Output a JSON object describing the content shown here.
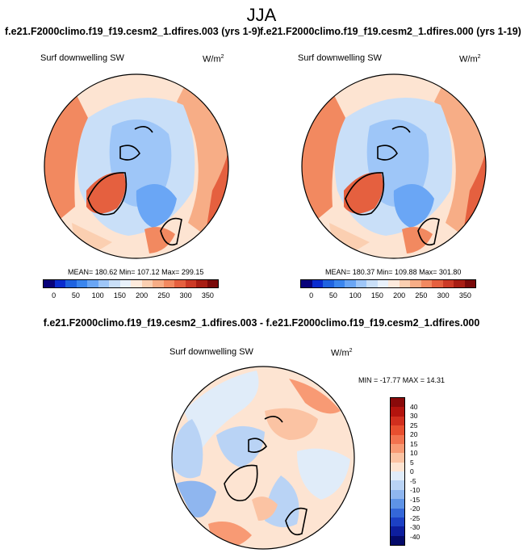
{
  "title": "JJA",
  "subtitles": {
    "left": "f.e21.F2000climo.f19_f19.cesm2_1.dfires.003 (yrs 1-9)",
    "right": "f.e21.F2000climo.f19_f19.cesm2_1.dfires.000 (yrs 1-19)"
  },
  "panels": {
    "left": {
      "label": "Surf downwelling SW",
      "units": "W/m",
      "units_sup": "2",
      "stats": "MEAN= 180.62  Min= 107.12  Max= 299.15"
    },
    "right": {
      "label": "Surf downwelling SW",
      "units": "W/m",
      "units_sup": "2",
      "stats": "MEAN= 180.37  Min= 109.88  Max= 301.80"
    },
    "diff": {
      "title": "f.e21.F2000climo.f19_f19.cesm2_1.dfires.003 - f.e21.F2000climo.f19_f19.cesm2_1.dfires.000",
      "label": "Surf downwelling SW",
      "units": "W/m",
      "units_sup": "2",
      "stats": "MIN = -17.77 MAX =  14.31"
    }
  },
  "colorbar_abs": {
    "ticks": [
      "0",
      "50",
      "100",
      "150",
      "200",
      "250",
      "300",
      "350"
    ],
    "colors": [
      "#08027a",
      "#0a2ccf",
      "#1f63e0",
      "#3b86ee",
      "#6aa6f5",
      "#9ec6f8",
      "#c9dff8",
      "#e8f1fb",
      "#fdeadc",
      "#fbcfb1",
      "#f7ad86",
      "#f28960",
      "#e5603f",
      "#cc3a26",
      "#a81e14",
      "#7a0a0a"
    ]
  },
  "colorbar_diff": {
    "ticks": [
      "40",
      "30",
      "25",
      "20",
      "15",
      "10",
      "5",
      "0",
      "-5",
      "-10",
      "-15",
      "-20",
      "-25",
      "-30",
      "-40"
    ],
    "colors": [
      "#8a0a0a",
      "#b3140e",
      "#d12f1e",
      "#e84f2f",
      "#f2734f",
      "#f89a74",
      "#fbc3a3",
      "#fde4d2",
      "#e0ecf9",
      "#b9d3f5",
      "#8fb6ef",
      "#5e93e6",
      "#3467d8",
      "#1c40c4",
      "#0d1e9e",
      "#040a6a"
    ]
  }
}
